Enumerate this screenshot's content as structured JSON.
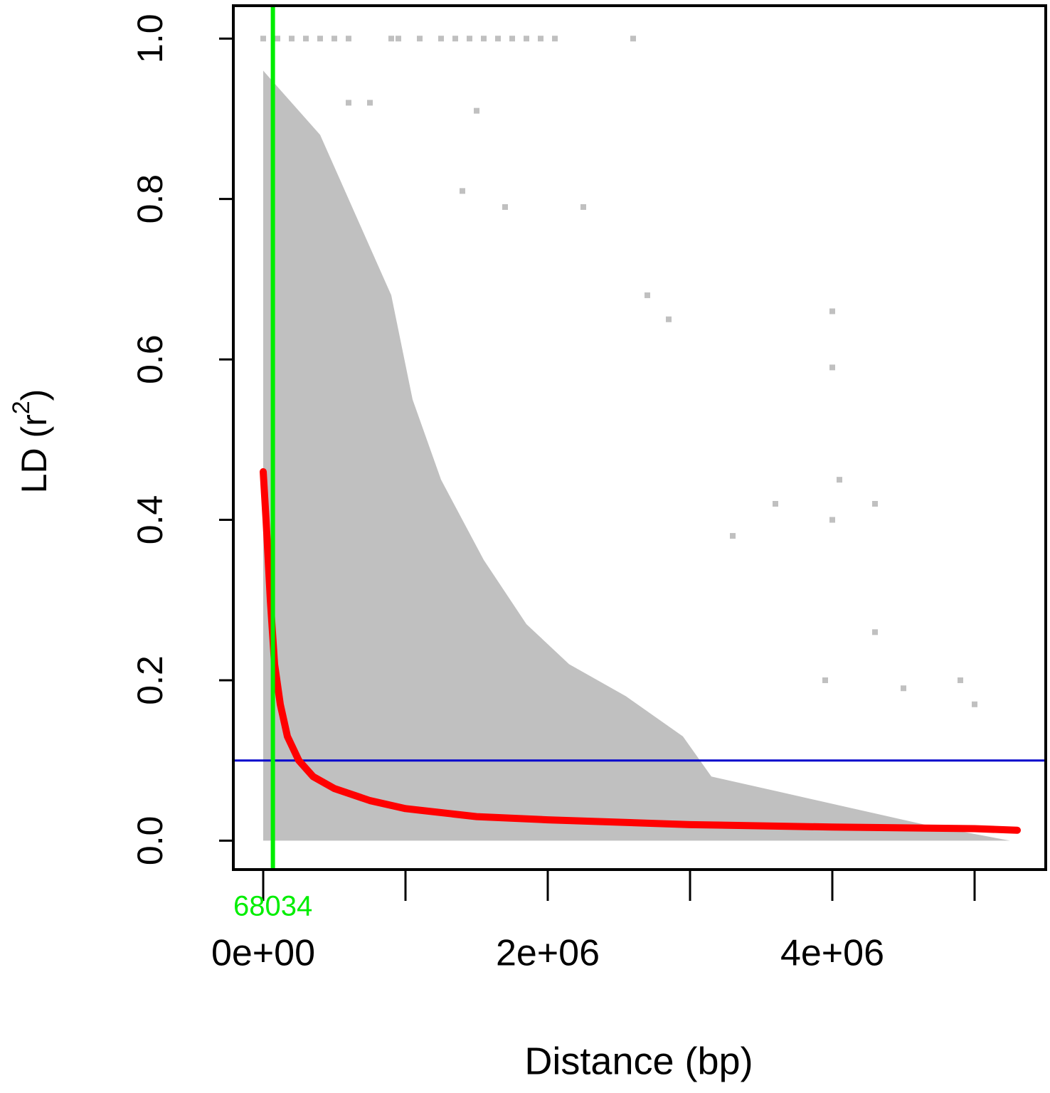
{
  "chart_data": {
    "type": "scatter",
    "x_label": "Distance (bp)",
    "y_label": [
      "LD (r",
      "2",
      ")"
    ],
    "xlim": [
      -210000,
      5500000
    ],
    "ylim": [
      -0.036,
      1.041
    ],
    "xticks": [
      {
        "value": 0,
        "label": "0e+00"
      },
      {
        "value": 1000000,
        "label": null
      },
      {
        "value": 2000000,
        "label": "2e+06"
      },
      {
        "value": 3000000,
        "label": null
      },
      {
        "value": 4000000,
        "label": "4e+06"
      },
      {
        "value": 5000000,
        "label": null
      }
    ],
    "yticks": [
      {
        "value": 0,
        "label": "0.0"
      },
      0.2,
      0.4,
      0.6,
      0.8,
      {
        "value": 1,
        "label": "1.0"
      }
    ],
    "series": [
      {
        "type": "area",
        "color": "#c0c0c0",
        "x": [
          0,
          150000,
          400000,
          650000,
          900000,
          1050000,
          1250000,
          1550000,
          1850000,
          2150000,
          2550000,
          2950000,
          3150000,
          3650000,
          4150000,
          4650000,
          5250000
        ],
        "values": [
          0.96,
          0.93,
          0.88,
          0.78,
          0.68,
          0.55,
          0.45,
          0.35,
          0.27,
          0.22,
          0.18,
          0.13,
          0.08,
          0.06,
          0.04,
          0.02,
          0.0
        ]
      },
      {
        "type": "scatter",
        "color": "#c0c0c0",
        "x": [
          0,
          100000,
          200000,
          300000,
          400000,
          500000,
          600000,
          900000,
          950000,
          1100000,
          1250000,
          1350000,
          1450000,
          1550000,
          1650000,
          1750000,
          1850000,
          1950000,
          2050000,
          2600000,
          4000000,
          4000000,
          4050000,
          4000000,
          4300000,
          3600000,
          2700000,
          2850000,
          3300000,
          4300000,
          4500000,
          4900000,
          5000000,
          3950000,
          2250000,
          1500000,
          1400000,
          1700000,
          600000,
          750000
        ],
        "values": [
          1,
          1,
          1,
          1,
          1,
          1,
          1,
          1,
          1,
          1,
          1,
          1,
          1,
          1,
          1,
          1,
          1,
          1,
          1,
          1,
          0.66,
          0.59,
          0.45,
          0.4,
          0.42,
          0.42,
          0.68,
          0.65,
          0.38,
          0.26,
          0.19,
          0.2,
          0.17,
          0.2,
          0.79,
          0.91,
          0.81,
          0.79,
          0.92,
          0.92
        ]
      },
      {
        "type": "line",
        "color": "#ff0000",
        "x": [
          0,
          20000,
          50000,
          80000,
          120000,
          170000,
          250000,
          350000,
          500000,
          750000,
          1000000,
          1500000,
          2000000,
          3000000,
          4000000,
          5000000,
          5300000
        ],
        "values": [
          0.46,
          0.4,
          0.3,
          0.22,
          0.17,
          0.13,
          0.1,
          0.08,
          0.065,
          0.05,
          0.04,
          0.03,
          0.026,
          0.02,
          0.017,
          0.015,
          0.013
        ]
      }
    ],
    "vline": 68034,
    "vline_color": "#00ee00",
    "hline": 0.1,
    "hline_color": "#0000cc"
  }
}
